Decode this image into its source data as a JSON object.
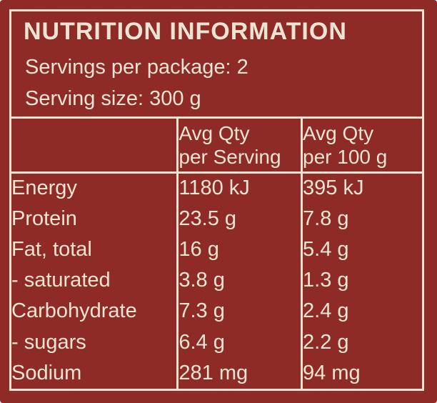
{
  "colors": {
    "background": "#8e2b26",
    "foreground": "#ece4d3"
  },
  "label": {
    "title": "NUTRITION INFORMATION",
    "servings_line": "Servings per package: 2",
    "serving_size_line": "Serving size: 300 g"
  },
  "table": {
    "headers": {
      "col1": "",
      "col2": "Avg Qty\nper Serving",
      "col3": "Avg Qty\nper 100 g"
    },
    "rows": [
      {
        "label": "Energy",
        "per_serving": "1180 kJ",
        "per_100g": "395 kJ"
      },
      {
        "label": "Protein",
        "per_serving": "23.5 g",
        "per_100g": "7.8 g"
      },
      {
        "label": "Fat, total",
        "per_serving": "16 g",
        "per_100g": "5.4 g"
      },
      {
        "label": "- saturated",
        "per_serving": "3.8 g",
        "per_100g": "1.3 g"
      },
      {
        "label": "Carbohydrate",
        "per_serving": "7.3 g",
        "per_100g": "2.4 g"
      },
      {
        "label": "- sugars",
        "per_serving": "6.4 g",
        "per_100g": "2.2 g"
      },
      {
        "label": "Sodium",
        "per_serving": "281 mg",
        "per_100g": "94 mg"
      }
    ]
  }
}
